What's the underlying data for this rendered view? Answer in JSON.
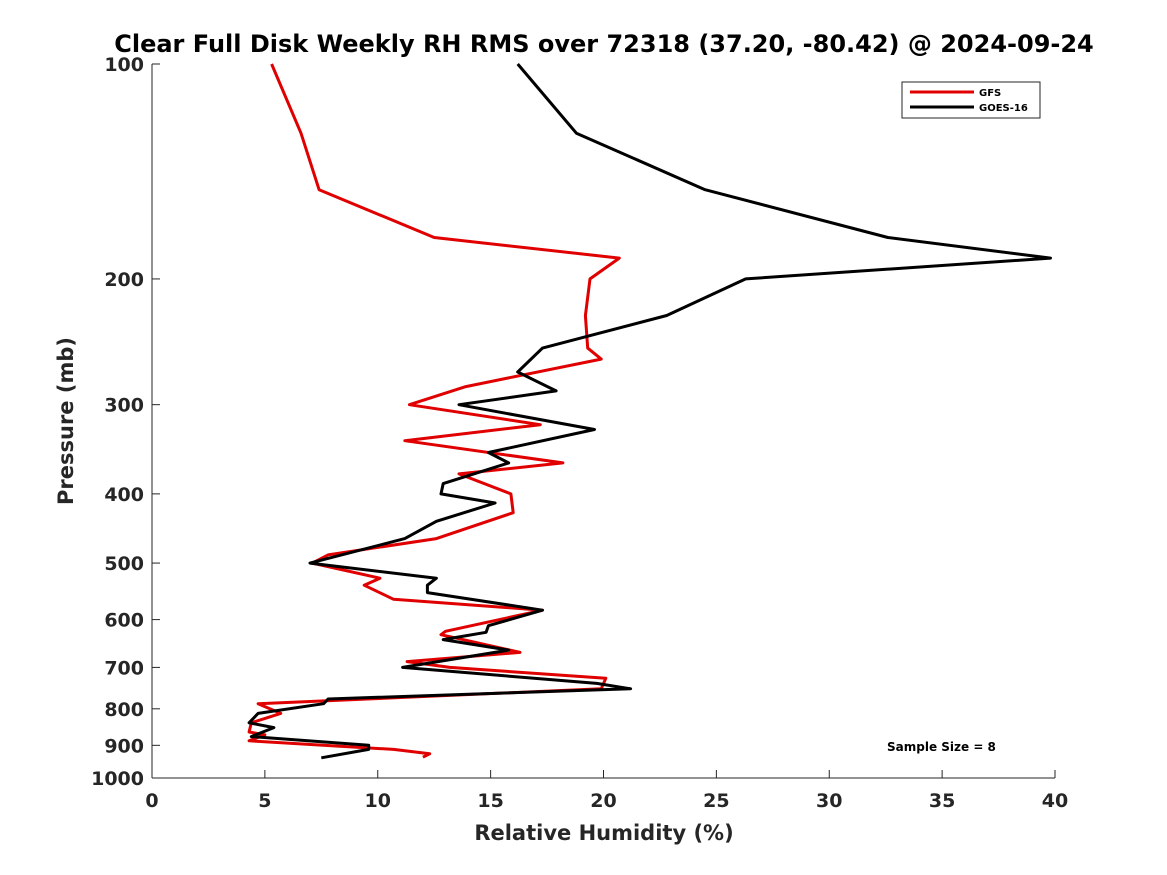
{
  "chart_data": {
    "type": "line",
    "title": "Clear Full Disk Weekly RH RMS over 72318 (37.20, -80.42) @ 2024-09-24",
    "xlabel": "Relative Humidity (%)",
    "ylabel": "Pressure (mb)",
    "xlim": [
      0,
      40
    ],
    "ylim": [
      100,
      1000
    ],
    "y_scale": "log",
    "y_reversed": true,
    "x_ticks": [
      0,
      5,
      10,
      15,
      20,
      25,
      30,
      35,
      40
    ],
    "x_tick_labels": [
      "0",
      "5",
      "10",
      "15",
      "20",
      "25",
      "30",
      "35",
      "40"
    ],
    "y_ticks": [
      100,
      200,
      300,
      400,
      500,
      600,
      700,
      800,
      900,
      1000
    ],
    "y_tick_labels": [
      "100",
      "200",
      "300",
      "400",
      "500",
      "600",
      "700",
      "800",
      "900",
      "1000"
    ],
    "grid": false,
    "legend_position": "top-right",
    "annotation": "Sample Size = 8",
    "series": [
      {
        "name": "GFS",
        "color": "#e00000",
        "points": [
          [
            5.3,
            100
          ],
          [
            6.6,
            125
          ],
          [
            7.4,
            150
          ],
          [
            12.5,
            175
          ],
          [
            20.7,
            187
          ],
          [
            19.4,
            200
          ],
          [
            19.2,
            225
          ],
          [
            19.3,
            250
          ],
          [
            19.9,
            259
          ],
          [
            13.9,
            283
          ],
          [
            11.4,
            300
          ],
          [
            17.2,
            320
          ],
          [
            11.2,
            337
          ],
          [
            18.2,
            362
          ],
          [
            13.6,
            375
          ],
          [
            15.9,
            400
          ],
          [
            16.0,
            425
          ],
          [
            12.6,
            462
          ],
          [
            7.8,
            487
          ],
          [
            7.1,
            500
          ],
          [
            10.1,
            525
          ],
          [
            9.4,
            537
          ],
          [
            10.7,
            562
          ],
          [
            17.3,
            582
          ],
          [
            13.0,
            623
          ],
          [
            12.8,
            630
          ],
          [
            16.3,
            667
          ],
          [
            11.3,
            687
          ],
          [
            13.2,
            700
          ],
          [
            20.1,
            725
          ],
          [
            19.9,
            750
          ],
          [
            4.7,
            787
          ],
          [
            5.7,
            812
          ],
          [
            4.4,
            837
          ],
          [
            4.3,
            862
          ],
          [
            5.0,
            870
          ],
          [
            4.3,
            887
          ],
          [
            10.7,
            912
          ],
          [
            12.3,
            925
          ],
          [
            12.0,
            935
          ]
        ]
      },
      {
        "name": "GOES-16",
        "color": "#000000",
        "points": [
          [
            16.2,
            100
          ],
          [
            18.8,
            125
          ],
          [
            24.5,
            150
          ],
          [
            32.6,
            175
          ],
          [
            39.8,
            187
          ],
          [
            26.3,
            200
          ],
          [
            22.8,
            225
          ],
          [
            17.3,
            250
          ],
          [
            16.2,
            270
          ],
          [
            17.9,
            287
          ],
          [
            13.6,
            300
          ],
          [
            19.6,
            325
          ],
          [
            14.9,
            350
          ],
          [
            15.8,
            362
          ],
          [
            12.9,
            387
          ],
          [
            12.8,
            400
          ],
          [
            15.2,
            412
          ],
          [
            12.6,
            437
          ],
          [
            11.2,
            462
          ],
          [
            7.0,
            500
          ],
          [
            12.6,
            525
          ],
          [
            12.2,
            537
          ],
          [
            12.2,
            550
          ],
          [
            17.3,
            582
          ],
          [
            14.9,
            612
          ],
          [
            14.8,
            625
          ],
          [
            12.9,
            640
          ],
          [
            15.8,
            662
          ],
          [
            11.1,
            700
          ],
          [
            19.7,
            737
          ],
          [
            21.2,
            750
          ],
          [
            7.8,
            775
          ],
          [
            7.6,
            787
          ],
          [
            4.7,
            812
          ],
          [
            4.3,
            837
          ],
          [
            5.4,
            850
          ],
          [
            4.4,
            875
          ],
          [
            9.6,
            900
          ],
          [
            9.6,
            912
          ],
          [
            7.5,
            937
          ]
        ]
      }
    ]
  }
}
